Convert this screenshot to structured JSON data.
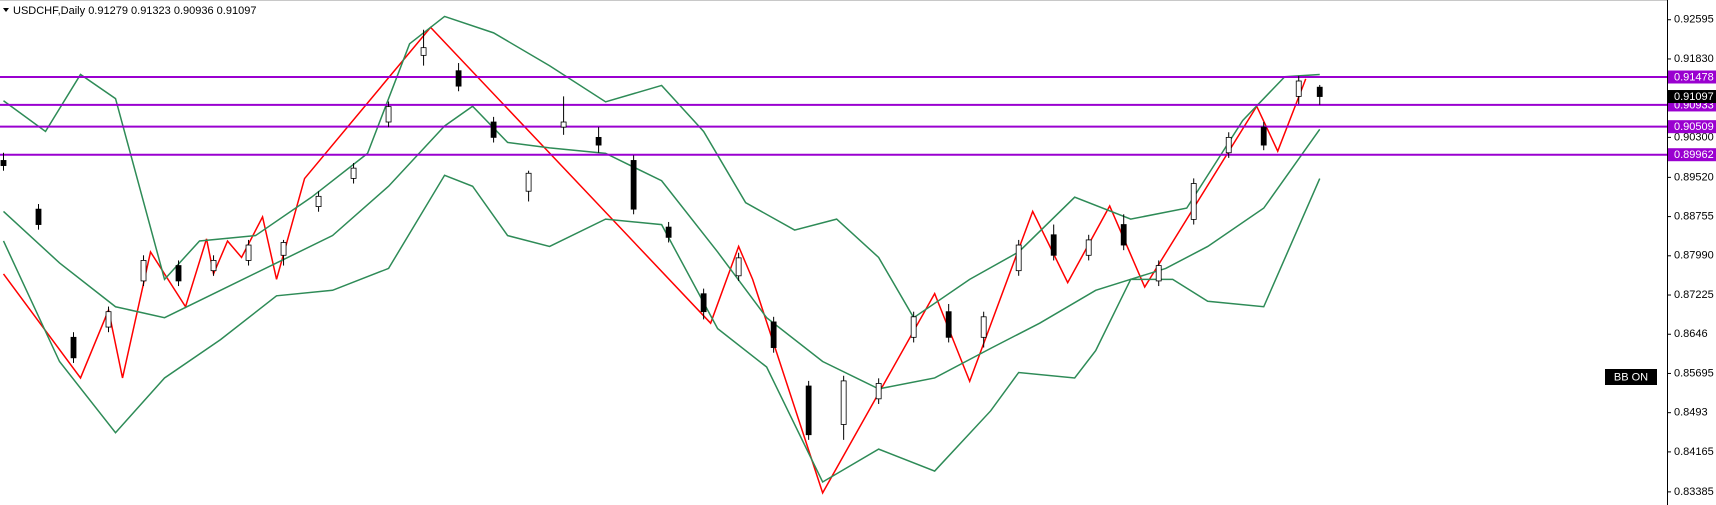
{
  "chart_data": {
    "type": "candlestick",
    "symbol": "USDCHF,Daily",
    "indicator_label": "BB ON",
    "candles": {
      "up_color": "#ffffff",
      "down_color": "#000000",
      "x": [
        0,
        5,
        10,
        15,
        20,
        25,
        30,
        35,
        40,
        45,
        50,
        55,
        60,
        65,
        70,
        75,
        80,
        85,
        90,
        95,
        100,
        105,
        110,
        115,
        120,
        125,
        130,
        135,
        140,
        145,
        150,
        155,
        160,
        165,
        170,
        175,
        180,
        185,
        188
      ],
      "open": [
        0.8985,
        0.889,
        0.864,
        0.866,
        0.875,
        0.878,
        0.877,
        0.879,
        0.88,
        0.8895,
        0.895,
        0.906,
        0.919,
        0.916,
        0.906,
        0.8925,
        0.905,
        0.903,
        0.8985,
        0.8855,
        0.8725,
        0.876,
        0.867,
        0.8545,
        0.847,
        0.852,
        0.864,
        0.869,
        0.864,
        0.877,
        0.884,
        0.88,
        0.886,
        0.875,
        0.887,
        0.9,
        0.905,
        0.911,
        0.91279
      ],
      "high": [
        0.9,
        0.89,
        0.865,
        0.87,
        0.88,
        0.879,
        0.88,
        0.883,
        0.883,
        0.8925,
        0.898,
        0.91,
        0.924,
        0.9175,
        0.907,
        0.8965,
        0.911,
        0.905,
        0.8995,
        0.8865,
        0.8735,
        0.8805,
        0.868,
        0.8555,
        0.8565,
        0.856,
        0.869,
        0.8705,
        0.869,
        0.883,
        0.886,
        0.884,
        0.888,
        0.879,
        0.895,
        0.904,
        0.906,
        0.915,
        0.91323
      ],
      "low": [
        0.8965,
        0.885,
        0.859,
        0.865,
        0.874,
        0.874,
        0.876,
        0.878,
        0.878,
        0.8885,
        0.894,
        0.905,
        0.917,
        0.912,
        0.902,
        0.8905,
        0.9035,
        0.9,
        0.888,
        0.8825,
        0.8675,
        0.875,
        0.861,
        0.844,
        0.844,
        0.851,
        0.863,
        0.863,
        0.862,
        0.876,
        0.879,
        0.879,
        0.881,
        0.874,
        0.886,
        0.899,
        0.9005,
        0.9095,
        0.90936
      ],
      "close": [
        0.8975,
        0.886,
        0.86,
        0.869,
        0.879,
        0.875,
        0.879,
        0.882,
        0.8825,
        0.8915,
        0.897,
        0.909,
        0.9205,
        0.913,
        0.903,
        0.896,
        0.906,
        0.9015,
        0.889,
        0.8835,
        0.869,
        0.8795,
        0.862,
        0.845,
        0.8555,
        0.855,
        0.868,
        0.864,
        0.868,
        0.882,
        0.88,
        0.883,
        0.882,
        0.878,
        0.894,
        0.903,
        0.9015,
        0.914,
        0.91097
      ]
    },
    "series": [
      {
        "color": "#ff0000",
        "x": [
          0,
          11,
          15,
          17,
          21,
          26,
          29,
          30,
          32,
          34,
          37,
          39,
          43,
          61,
          101,
          105,
          107,
          117,
          133,
          138,
          147,
          152,
          158,
          163,
          179,
          182,
          186
        ],
        "values": [
          0.87637,
          0.85607,
          0.86932,
          0.85607,
          0.88065,
          0.86996,
          0.88321,
          0.87637,
          0.88279,
          0.87958,
          0.88749,
          0.87531,
          0.89497,
          0.92446,
          0.86676,
          0.88172,
          0.87531,
          0.83365,
          0.87253,
          0.85543,
          0.88856,
          0.87467,
          0.88962,
          0.87381,
          0.90907,
          0.90031,
          0.91441
        ]
      },
      {
        "color": "#2e8b57",
        "x": [
          0,
          8,
          16,
          23,
          31,
          39,
          47,
          55,
          63,
          67,
          72,
          78,
          86,
          94,
          102,
          109,
          117,
          125,
          133,
          141,
          148,
          156,
          161,
          166,
          172,
          180,
          188
        ],
        "values": [
          0.88856,
          0.87851,
          0.86996,
          0.86783,
          0.87317,
          0.87851,
          0.88385,
          0.89347,
          0.90523,
          0.90907,
          0.90202,
          0.90095,
          0.89988,
          0.89454,
          0.88065,
          0.86783,
          0.85928,
          0.85394,
          0.85607,
          0.86184,
          0.86676,
          0.87317,
          0.87531,
          0.87744,
          0.88172,
          0.8892,
          0.90458
        ]
      },
      {
        "color": "#2e8b57",
        "x": [
          0,
          6,
          11,
          16,
          23,
          28,
          36,
          44,
          52,
          58,
          63,
          70,
          78,
          86,
          94,
          100,
          106,
          113,
          119,
          125,
          130,
          138,
          145,
          153,
          161,
          169,
          177,
          183,
          188
        ],
        "values": [
          0.91014,
          0.90416,
          0.91527,
          0.91057,
          0.87531,
          0.88279,
          0.88385,
          0.89134,
          0.89988,
          0.92125,
          0.92659,
          0.92339,
          0.91698,
          0.90993,
          0.91313,
          0.90416,
          0.89027,
          0.88492,
          0.88706,
          0.87958,
          0.86783,
          0.87531,
          0.88065,
          0.89134,
          0.88706,
          0.8892,
          0.90629,
          0.91484,
          0.91527
        ]
      },
      {
        "color": "#2e8b57",
        "x": [
          0,
          8,
          16,
          23,
          31,
          39,
          47,
          55,
          63,
          67,
          72,
          78,
          86,
          94,
          102,
          109,
          117,
          125,
          133,
          141,
          145,
          153,
          156,
          161,
          167,
          172,
          180,
          188
        ],
        "values": [
          0.88279,
          0.85928,
          0.84539,
          0.85607,
          0.86355,
          0.8721,
          0.87317,
          0.87744,
          0.89561,
          0.89347,
          0.88385,
          0.88172,
          0.88706,
          0.88599,
          0.86569,
          0.85821,
          0.83578,
          0.84219,
          0.83791,
          0.84966,
          0.85714,
          0.85607,
          0.86141,
          0.87531,
          0.87531,
          0.87103,
          0.86996,
          0.89497
        ]
      }
    ],
    "levels": {
      "color": "#9a00d0",
      "values": [
        0.91478,
        0.90933,
        0.90509,
        0.89962
      ]
    },
    "xlim": [
      -0.5,
      237.6
    ],
    "ylim": [
      0.83129,
      0.9298
    ],
    "yticks": [
      0.92595,
      {
        "value": 0.9183,
        "label": "0.91830"
      },
      {
        "value": 0.903,
        "label": "0.90300"
      },
      {
        "value": 0.8952,
        "label": "0.89520"
      },
      0.88755,
      {
        "value": 0.8799,
        "label": "0.87990"
      },
      0.87225,
      0.8646,
      0.85695,
      0.8493,
      0.84165,
      0.83385
    ],
    "grid": false
  }
}
